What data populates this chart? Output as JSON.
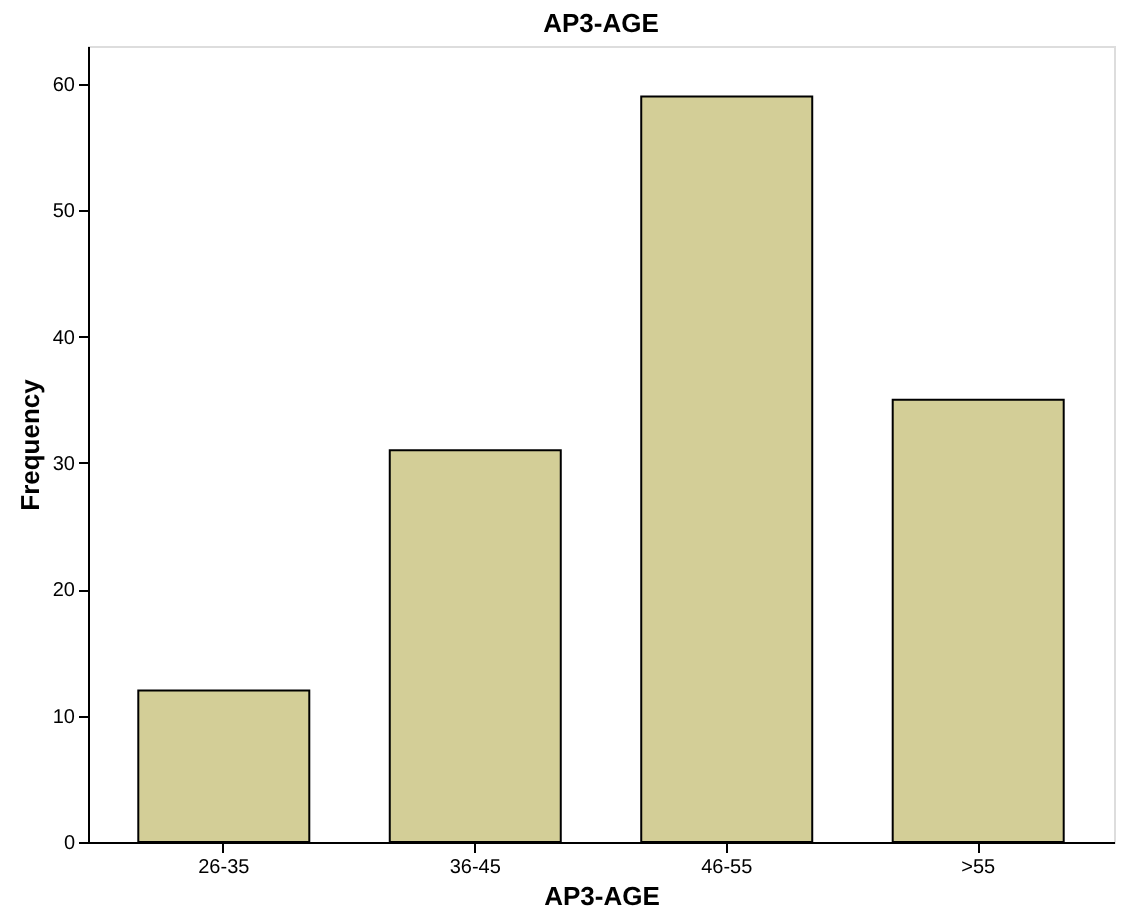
{
  "chart_data": {
    "type": "bar",
    "title": "AP3-AGE",
    "xlabel": "AP3-AGE",
    "ylabel": "Frequency",
    "categories": [
      "26-35",
      "36-45",
      "46-55",
      ">55"
    ],
    "values": [
      12,
      31,
      59,
      35
    ],
    "color": "#d3ce97",
    "ylim": [
      0,
      63
    ],
    "yticks": [
      0,
      10,
      20,
      30,
      40,
      50,
      60
    ],
    "grid": false
  }
}
